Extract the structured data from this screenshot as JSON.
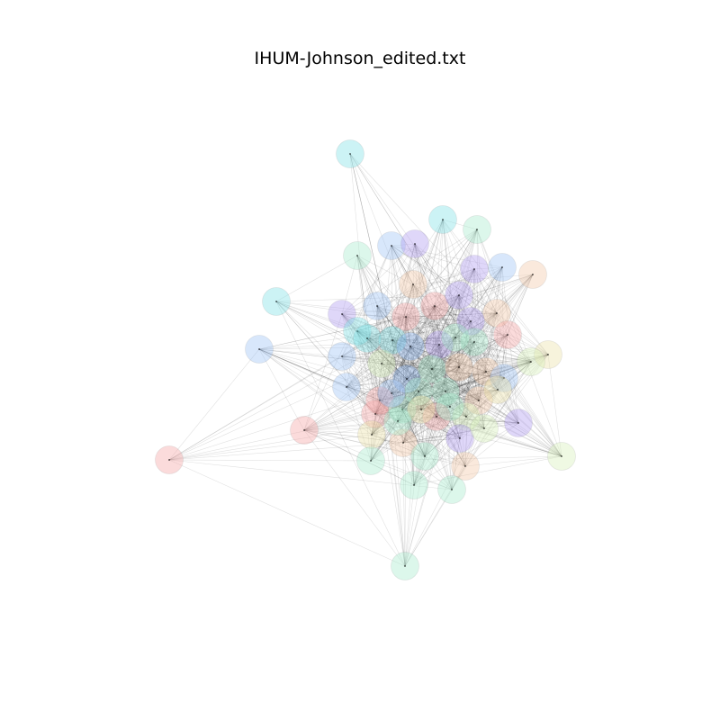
{
  "title": "IHUM-Johnson_edited.txt",
  "node_count": 64,
  "node_palette": [
    "#80e0e6",
    "#9ec3f5",
    "#b09af0",
    "#f4a6a6",
    "#f2c8a8",
    "#a8eccc",
    "#d6efb8",
    "#ece2a8",
    "#8ab4f0",
    "#e89870"
  ]
}
